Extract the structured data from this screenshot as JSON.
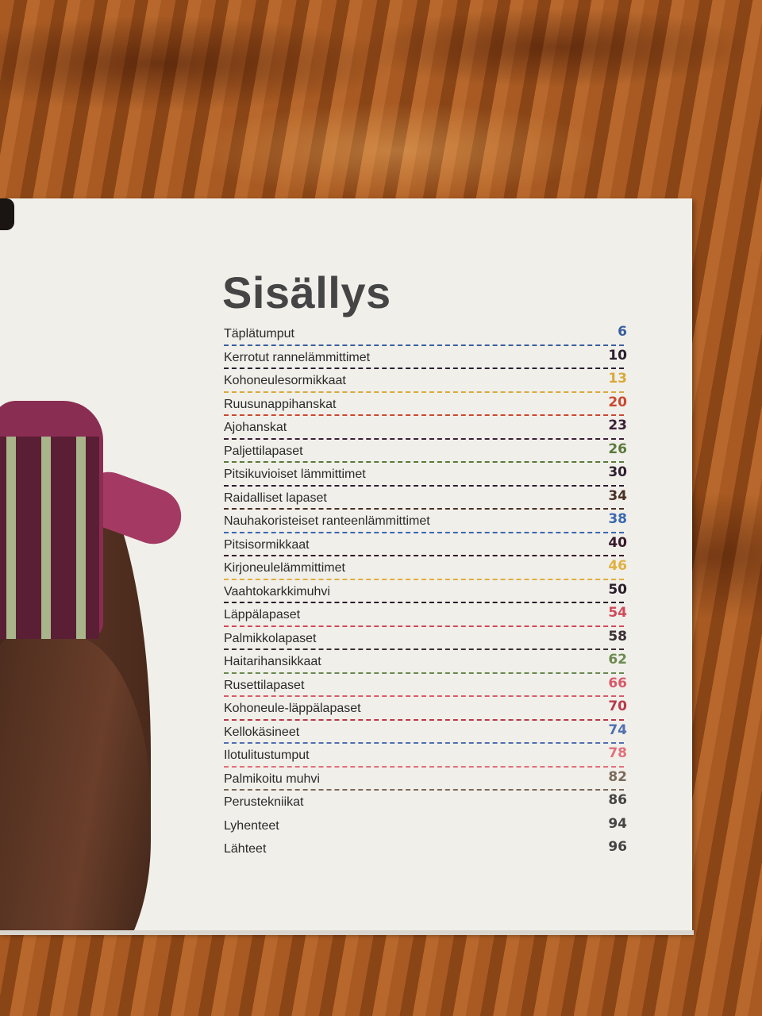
{
  "title": "Sisällys",
  "entries": [
    {
      "title": "Täplätumput",
      "page": "6",
      "color": "#3a5fa0",
      "line": true
    },
    {
      "title": "Kerrotut rannelämmittimet",
      "page": "10",
      "color": "#2a2030",
      "line": true
    },
    {
      "title": "Kohoneulesormikkaat",
      "page": "13",
      "color": "#d9a93a",
      "line": true
    },
    {
      "title": "Ruusunappihanskat",
      "page": "20",
      "color": "#c84a30",
      "line": true
    },
    {
      "title": "Ajohanskat",
      "page": "23",
      "color": "#3a1f35",
      "line": true
    },
    {
      "title": "Paljettilapaset",
      "page": "26",
      "color": "#5a7a3a",
      "line": true
    },
    {
      "title": "Pitsikuvioiset lämmittimet",
      "page": "30",
      "color": "#2e1e2e",
      "line": true
    },
    {
      "title": "Raidalliset lapaset",
      "page": "34",
      "color": "#4a3025",
      "line": true
    },
    {
      "title": "Nauhakoristeiset ranteenlämmittimet",
      "page": "38",
      "color": "#3a68b0",
      "line": true
    },
    {
      "title": "Pitsisormikkaat",
      "page": "40",
      "color": "#35182a",
      "line": true
    },
    {
      "title": "Kirjoneulelämmittimet",
      "page": "46",
      "color": "#e0b040",
      "line": true
    },
    {
      "title": "Vaahtokarkkimuhvi",
      "page": "50",
      "color": "#2a1e2a",
      "line": true
    },
    {
      "title": "Läppälapaset",
      "page": "54",
      "color": "#d04a5a",
      "line": true
    },
    {
      "title": "Palmikkolapaset",
      "page": "58",
      "color": "#3a3035",
      "line": true
    },
    {
      "title": "Haitarihansikkaat",
      "page": "62",
      "color": "#6a8a50",
      "line": true
    },
    {
      "title": "Rusettilapaset",
      "page": "66",
      "color": "#d85a6a",
      "line": true
    },
    {
      "title": "Kohoneule-läppälapaset",
      "page": "70",
      "color": "#b83a4a",
      "line": true
    },
    {
      "title": "Kellokäsineet",
      "page": "74",
      "color": "#5070b0",
      "line": true
    },
    {
      "title": "Ilotulitustumput",
      "page": "78",
      "color": "#e0707a",
      "line": true
    },
    {
      "title": "Palmikoitu muhvi",
      "page": "82",
      "color": "#7a6a5a",
      "line": true
    },
    {
      "title": "Perustekniikat",
      "page": "86",
      "color": "#444444",
      "line": false
    },
    {
      "title": "Lyhenteet",
      "page": "94",
      "color": "#444444",
      "line": false
    },
    {
      "title": "Lähteet",
      "page": "96",
      "color": "#444444",
      "line": false
    }
  ]
}
